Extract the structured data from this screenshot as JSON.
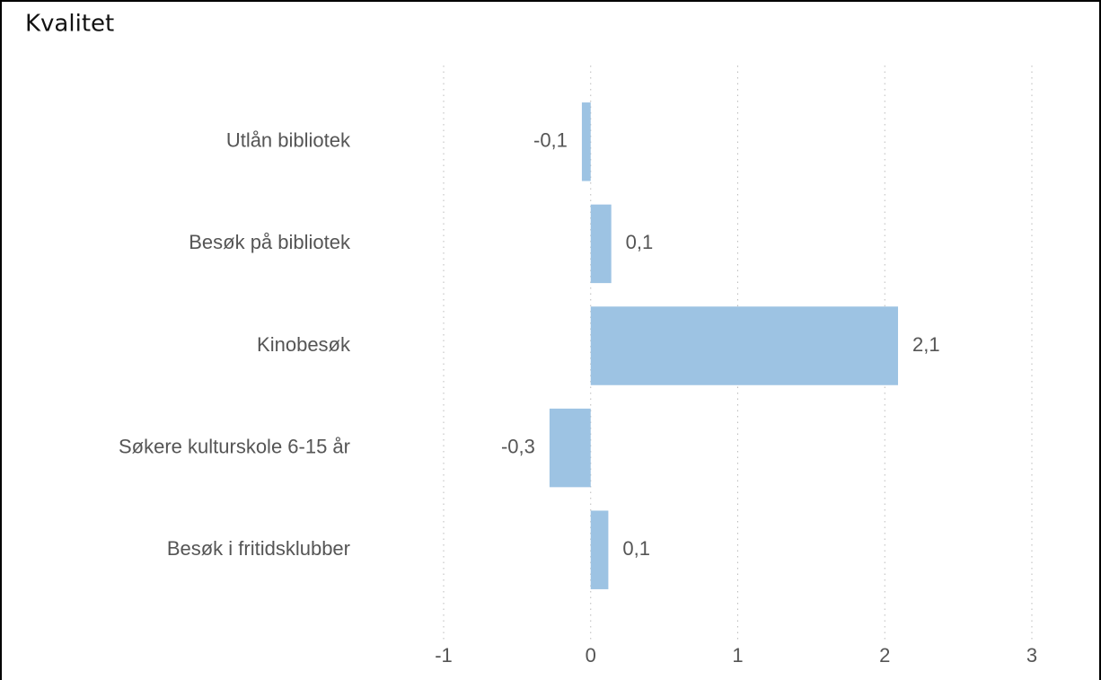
{
  "chart_data": {
    "type": "bar",
    "orientation": "horizontal",
    "title": "Kvalitet",
    "categories": [
      "Utlån bibliotek",
      "Besøk på bibliotek",
      "Kinobesøk",
      "Søkere kulturskole 6-15 år",
      "Besøk i fritidsklubber"
    ],
    "values": [
      -0.06,
      0.14,
      2.09,
      -0.28,
      0.12
    ],
    "value_labels": [
      "-0,1",
      "0,1",
      "2,1",
      "-0,3",
      "0,1"
    ],
    "color": "#9dc3e3",
    "xlim": [
      -1,
      3
    ],
    "xticks": [
      -1,
      0,
      1,
      2,
      3
    ],
    "grid": true
  }
}
